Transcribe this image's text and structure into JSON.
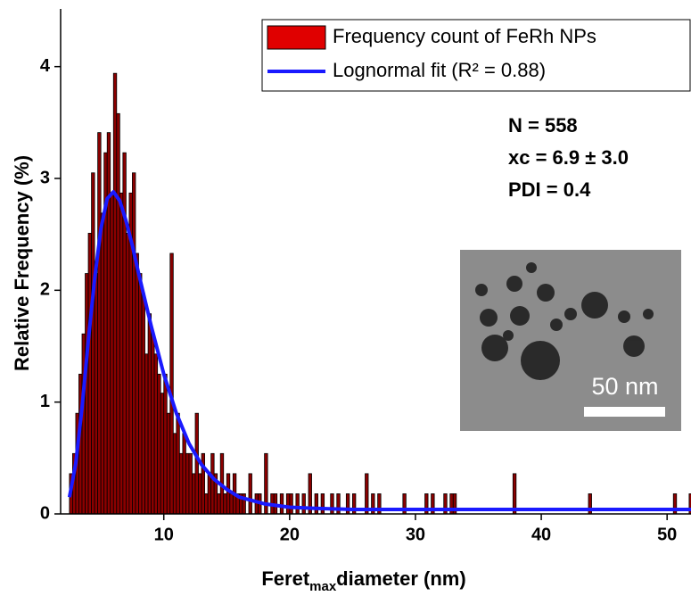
{
  "chart_data": {
    "type": "histogram",
    "x_label": "Feret",
    "x_label_sub": "max",
    "x_label_rest": "diameter (nm)",
    "y_label": "Relative Frequency (%)",
    "xlim": [
      1.8,
      51.9
    ],
    "xticks": [
      10,
      20,
      30,
      40,
      50
    ],
    "ylim": [
      0,
      4.5
    ],
    "yticks": [
      0,
      1,
      2,
      3,
      4
    ],
    "grid": false,
    "bins": [
      2.5,
      2.75,
      3,
      3.25,
      3.5,
      3.75,
      4,
      4.25,
      4.5,
      4.75,
      5,
      5.25,
      5.5,
      5.75,
      6,
      6.25,
      6.5,
      6.75,
      7,
      7.25,
      7.5,
      7.75,
      8,
      8.25,
      8.5,
      8.75,
      9,
      9.25,
      9.5,
      9.75,
      10,
      10.25,
      10.5,
      10.75,
      11,
      11.25,
      11.5,
      11.75,
      12,
      12.25,
      12.5,
      12.75,
      13,
      13.25,
      13.5,
      13.75,
      14,
      14.25,
      14.5,
      14.75,
      15,
      15.25,
      15.5,
      15.75,
      16,
      16.25,
      16.5,
      16.75,
      17,
      17.25,
      17.5,
      17.75,
      18,
      18.25,
      18.5,
      18.75,
      19,
      19.25,
      19.5,
      19.75,
      20,
      20.25,
      20.5,
      20.75,
      21,
      21.25,
      21.5,
      21.75,
      22,
      22.25,
      22.5,
      22.75,
      23,
      23.25,
      23.5,
      23.75,
      24,
      24.25,
      24.5,
      24.75,
      25,
      25.25,
      25.5,
      25.75,
      26,
      26.25,
      26.5,
      26.75,
      27,
      27.25,
      27.5,
      27.75,
      28,
      28.25,
      28.5,
      28.75,
      29,
      29.25,
      29.5,
      29.75,
      30,
      30.25,
      30.5,
      30.75,
      31,
      31.25,
      31.5,
      31.75,
      32,
      32.25,
      32.5,
      32.75,
      33,
      33.25,
      33.5,
      33.75,
      34,
      34.25,
      34.5,
      34.75,
      35,
      35.25,
      35.5,
      35.75,
      36,
      36.25,
      36.5,
      36.75,
      37,
      37.25,
      37.5,
      37.75,
      38,
      38.25,
      38.5,
      38.75,
      39,
      39.25,
      39.5,
      39.75,
      40,
      40.25,
      40.5,
      40.75,
      41,
      41.25,
      41.5,
      41.75,
      42,
      42.25,
      42.5,
      42.75,
      43,
      43.25,
      43.5,
      43.75,
      44,
      44.25,
      44.5,
      44.75,
      45,
      45.25,
      45.5,
      45.75,
      46,
      46.25,
      46.5,
      46.75,
      47,
      47.25,
      47.5,
      47.75,
      48,
      48.25,
      48.5,
      48.75,
      49,
      49.25,
      49.5,
      49.75,
      50,
      50.25,
      50.5,
      50.75,
      51,
      51.25,
      51.5,
      51.75,
      52,
      52.25,
      52.5
    ],
    "series": [
      {
        "name": "Frequency count of FeRh NPs",
        "color": "#8b0000",
        "values": [
          0.36,
          0.54,
          0.9,
          1.25,
          1.61,
          2.15,
          2.51,
          3.05,
          2.15,
          3.41,
          2.69,
          3.23,
          3.41,
          2.87,
          3.94,
          3.58,
          2.87,
          3.23,
          2.51,
          2.87,
          3.05,
          2.33,
          2.15,
          1.97,
          1.43,
          1.79,
          1.61,
          1.43,
          1.25,
          1.08,
          1.25,
          0.9,
          2.33,
          0.72,
          0.9,
          0.54,
          0.72,
          0.54,
          0.54,
          0.36,
          0.9,
          0.36,
          0.54,
          0.18,
          0.36,
          0.54,
          0.36,
          0.18,
          0.54,
          0.18,
          0.36,
          0.18,
          0.36,
          0.18,
          0.18,
          0.18,
          0,
          0.36,
          0,
          0.18,
          0.18,
          0,
          0.54,
          0,
          0.18,
          0.18,
          0,
          0.18,
          0,
          0.18,
          0.18,
          0,
          0.18,
          0,
          0.18,
          0,
          0.36,
          0,
          0.18,
          0,
          0.18,
          0,
          0,
          0.18,
          0,
          0.18,
          0,
          0,
          0.18,
          0,
          0.18,
          0,
          0,
          0,
          0.36,
          0,
          0.18,
          0,
          0.18,
          0,
          0,
          0,
          0,
          0,
          0,
          0,
          0.18,
          0,
          0,
          0,
          0,
          0,
          0,
          0.18,
          0,
          0.18,
          0,
          0,
          0,
          0.18,
          0,
          0.18,
          0.18,
          0,
          0,
          0,
          0,
          0,
          0,
          0,
          0,
          0,
          0,
          0,
          0,
          0,
          0,
          0,
          0,
          0,
          0,
          0.36,
          0,
          0,
          0,
          0,
          0,
          0,
          0,
          0,
          0,
          0,
          0,
          0,
          0,
          0,
          0,
          0,
          0,
          0,
          0,
          0,
          0,
          0,
          0,
          0.18,
          0,
          0,
          0,
          0,
          0,
          0,
          0,
          0,
          0,
          0,
          0,
          0,
          0,
          0,
          0,
          0,
          0,
          0,
          0,
          0,
          0,
          0,
          0,
          0,
          0,
          0,
          0.18,
          0,
          0,
          0,
          0,
          0.18,
          0,
          0
        ]
      },
      {
        "name": "Lognormal fit (R² = 0.88)",
        "color": "#1a1aff",
        "type": "line",
        "x": [
          2.5,
          3,
          3.5,
          4,
          4.5,
          5,
          5.5,
          6,
          6.5,
          7,
          7.5,
          8,
          9,
          10,
          11,
          12,
          13,
          14,
          15,
          16,
          18,
          20,
          22,
          25,
          30,
          40,
          51.9
        ],
        "values": [
          0.15,
          0.45,
          0.95,
          1.55,
          2.1,
          2.55,
          2.82,
          2.88,
          2.8,
          2.62,
          2.4,
          2.15,
          1.68,
          1.25,
          0.9,
          0.63,
          0.44,
          0.31,
          0.22,
          0.15,
          0.09,
          0.06,
          0.05,
          0.04,
          0.04,
          0.04,
          0.04
        ]
      }
    ],
    "annotations": [
      "N = 558",
      "xc = 6.9 ± 3.0",
      "PDI = 0.4"
    ],
    "inset_scale_label": "50 nm"
  }
}
